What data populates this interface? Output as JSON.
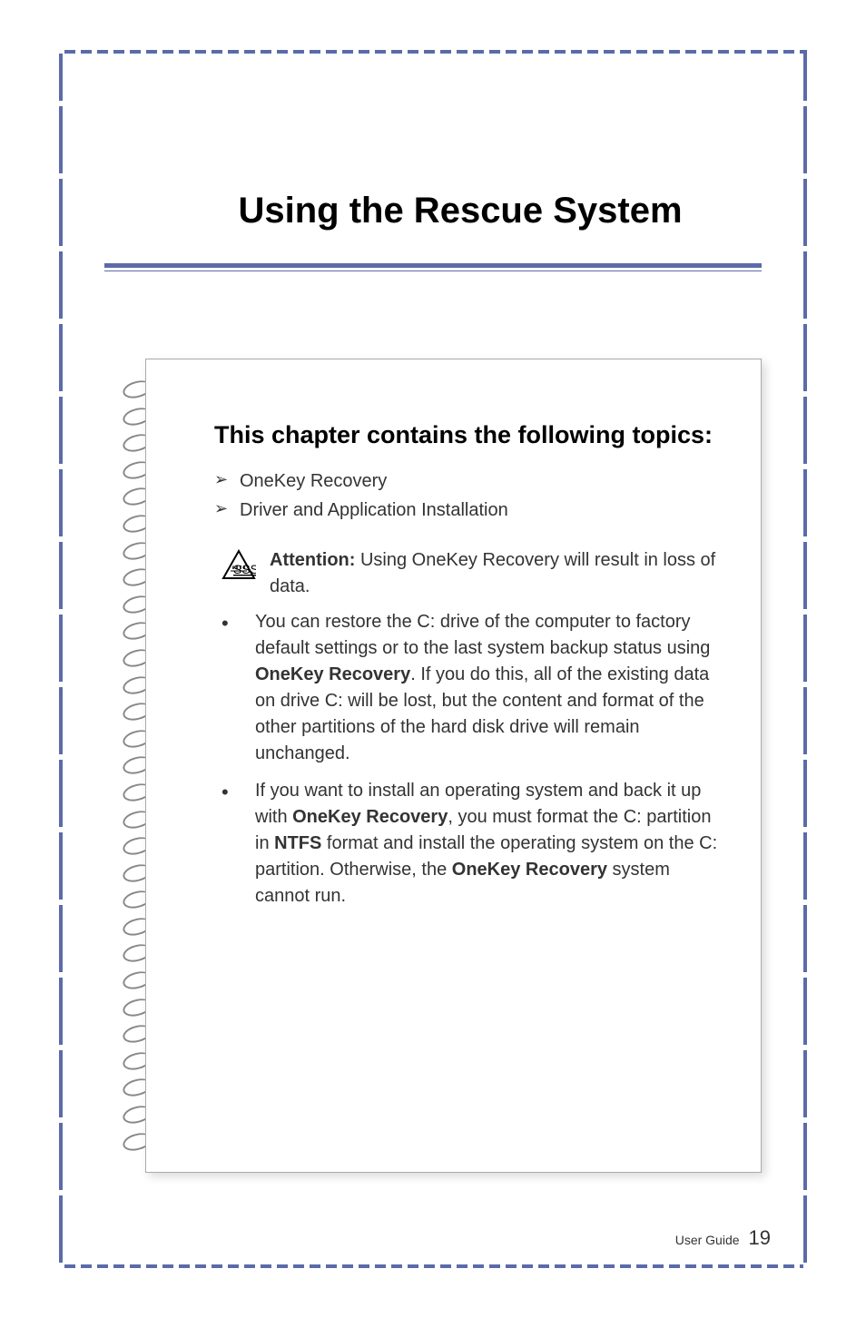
{
  "page": {
    "title": "Using the Rescue System",
    "colors": {
      "border_accent": "#5b6ba8",
      "text_primary": "#000000",
      "text_body": "#333333",
      "box_border": "#aaaaaa"
    },
    "typography": {
      "title_fontsize": 40,
      "heading_fontsize": 27,
      "body_fontsize": 20,
      "footer_label_fontsize": 14,
      "page_number_fontsize": 22
    }
  },
  "content": {
    "section_heading": "This chapter contains the following topics:",
    "topics": [
      "OneKey Recovery",
      "Driver and Application Installation"
    ],
    "attention": {
      "label": "Attention:",
      "text": " Using OneKey Recovery will result in loss of data."
    },
    "bullets": [
      {
        "segments": [
          {
            "text": "You can restore the C: drive of the computer to factory default settings or to the last system backup status using ",
            "bold": false
          },
          {
            "text": "OneKey Recovery",
            "bold": true
          },
          {
            "text": ". If you do this, all of the existing data on drive C: will be lost, but the content and format of the other partitions of the hard disk drive will remain unchanged.",
            "bold": false
          }
        ]
      },
      {
        "segments": [
          {
            "text": "If you want to install an operating system and back it up with ",
            "bold": false
          },
          {
            "text": "OneKey Recovery",
            "bold": true
          },
          {
            "text": ", you must format the C: partition in ",
            "bold": false
          },
          {
            "text": "NTFS",
            "bold": true
          },
          {
            "text": " format and install the operating system on the C: partition. Otherwise, the ",
            "bold": false
          },
          {
            "text": "OneKey Recovery",
            "bold": true
          },
          {
            "text": " system cannot run.",
            "bold": false
          }
        ]
      }
    ]
  },
  "footer": {
    "label": "User Guide",
    "page_number": "19"
  },
  "spiral": {
    "ring_count": 29
  }
}
